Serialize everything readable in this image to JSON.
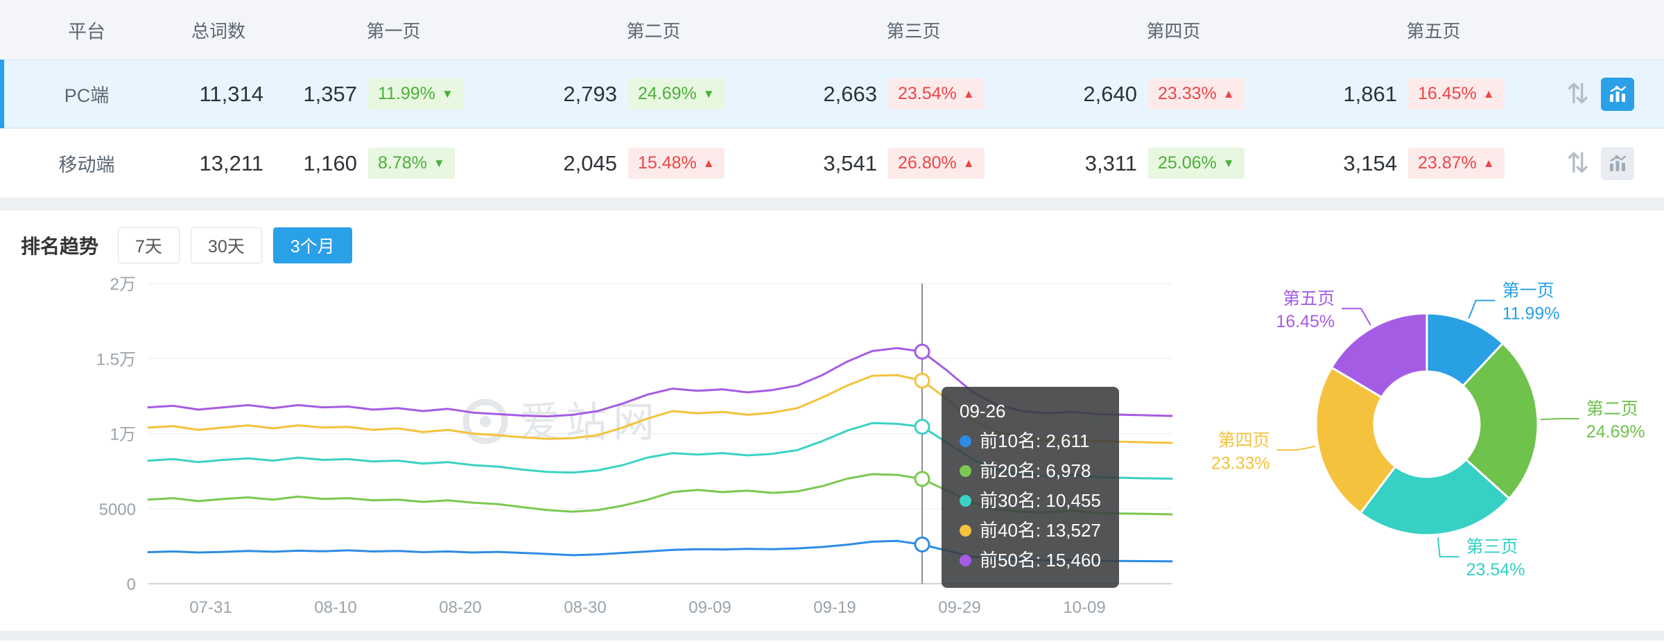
{
  "table": {
    "headers": [
      "平台",
      "总词数",
      "第一页",
      "第二页",
      "第三页",
      "第四页",
      "第五页"
    ],
    "rows": [
      {
        "platform": "PC端",
        "total": "11,314",
        "selected": true,
        "pages": [
          {
            "count": "1,357",
            "pct": "11.99%",
            "dir": "down"
          },
          {
            "count": "2,793",
            "pct": "24.69%",
            "dir": "down"
          },
          {
            "count": "2,663",
            "pct": "23.54%",
            "dir": "up"
          },
          {
            "count": "2,640",
            "pct": "23.33%",
            "dir": "up"
          },
          {
            "count": "1,861",
            "pct": "16.45%",
            "dir": "up"
          }
        ]
      },
      {
        "platform": "移动端",
        "total": "13,211",
        "selected": false,
        "pages": [
          {
            "count": "1,160",
            "pct": "8.78%",
            "dir": "down"
          },
          {
            "count": "2,045",
            "pct": "15.48%",
            "dir": "up"
          },
          {
            "count": "3,541",
            "pct": "26.80%",
            "dir": "up"
          },
          {
            "count": "3,311",
            "pct": "25.06%",
            "dir": "down"
          },
          {
            "count": "3,154",
            "pct": "23.87%",
            "dir": "up"
          }
        ]
      }
    ]
  },
  "icons": {
    "compare": "⇅"
  },
  "trend": {
    "title": "排名趋势",
    "range_buttons": [
      {
        "label": "7天",
        "active": false
      },
      {
        "label": "30天",
        "active": false
      },
      {
        "label": "3个月",
        "active": true
      }
    ],
    "watermark": "爱站网"
  },
  "colors": {
    "accent_blue": "#2aa0e8",
    "up_red": "#ee4545",
    "down_green": "#4bb03a",
    "selected_row_bg": "#e8f5fe"
  },
  "chart_data": [
    {
      "type": "line",
      "title": "排名趋势",
      "ylim": [
        0,
        20000
      ],
      "grid": true,
      "y_axis": {
        "labels": [
          "0",
          "5000",
          "1万",
          "1.5万",
          "2万"
        ],
        "values": [
          0,
          5000,
          10000,
          15000,
          20000
        ]
      },
      "x_ticks": [
        "07-31",
        "08-10",
        "08-20",
        "08-30",
        "09-09",
        "09-19",
        "09-29",
        "10-09"
      ],
      "x_tick_indices": [
        2.5,
        7.5,
        12.5,
        17.5,
        22.5,
        27.5,
        32.5,
        37.5
      ],
      "x": [
        "07-26",
        "07-28",
        "07-30",
        "08-01",
        "08-03",
        "08-05",
        "08-07",
        "08-09",
        "08-11",
        "08-13",
        "08-15",
        "08-17",
        "08-19",
        "08-21",
        "08-23",
        "08-25",
        "08-27",
        "08-29",
        "08-31",
        "09-02",
        "09-04",
        "09-06",
        "09-08",
        "09-10",
        "09-12",
        "09-14",
        "09-16",
        "09-18",
        "09-20",
        "09-22",
        "09-24",
        "09-26",
        "09-28",
        "09-30",
        "10-02",
        "10-04",
        "10-06",
        "10-08",
        "10-10",
        "10-12",
        "10-14",
        "10-16"
      ],
      "series": [
        {
          "name": "前10名",
          "color": "#2e8be4",
          "values": [
            2100,
            2150,
            2080,
            2120,
            2180,
            2130,
            2200,
            2160,
            2220,
            2150,
            2180,
            2100,
            2150,
            2080,
            2120,
            2050,
            1980,
            1900,
            1950,
            2050,
            2150,
            2250,
            2300,
            2280,
            2320,
            2300,
            2350,
            2450,
            2600,
            2800,
            2850,
            2611,
            2200,
            1800,
            1650,
            1600,
            1550,
            1580,
            1520,
            1510,
            1500,
            1490
          ]
        },
        {
          "name": "前20名",
          "color": "#7cc850",
          "values": [
            5600,
            5700,
            5500,
            5650,
            5750,
            5600,
            5800,
            5650,
            5700,
            5550,
            5600,
            5450,
            5550,
            5400,
            5300,
            5100,
            4900,
            4800,
            4900,
            5200,
            5600,
            6100,
            6250,
            6100,
            6200,
            6050,
            6150,
            6500,
            7000,
            7300,
            7250,
            6978,
            6200,
            5400,
            4950,
            4800,
            4750,
            4850,
            4700,
            4680,
            4650,
            4620
          ]
        },
        {
          "name": "前30名",
          "color": "#3bd2c5",
          "values": [
            8200,
            8300,
            8100,
            8250,
            8350,
            8200,
            8400,
            8250,
            8300,
            8150,
            8200,
            8000,
            8100,
            7900,
            7800,
            7600,
            7450,
            7400,
            7550,
            7900,
            8400,
            8700,
            8600,
            8700,
            8550,
            8650,
            8900,
            9500,
            10200,
            10700,
            10650,
            10455,
            9400,
            8300,
            7600,
            7300,
            7150,
            7250,
            7100,
            7060,
            7020,
            7000
          ]
        },
        {
          "name": "前40名",
          "color": "#f4c23c",
          "values": [
            10400,
            10500,
            10250,
            10400,
            10550,
            10350,
            10550,
            10400,
            10450,
            10250,
            10350,
            10100,
            10250,
            10000,
            9900,
            9750,
            9650,
            9700,
            9900,
            10400,
            11000,
            11500,
            11350,
            11450,
            11250,
            11400,
            11700,
            12400,
            13200,
            13850,
            13900,
            13527,
            12300,
            10900,
            10100,
            9750,
            9550,
            9650,
            9500,
            9460,
            9420,
            9380
          ]
        },
        {
          "name": "前50名",
          "color": "#a55ce4",
          "values": [
            11750,
            11850,
            11600,
            11750,
            11900,
            11700,
            11900,
            11750,
            11800,
            11600,
            11700,
            11500,
            11650,
            11400,
            11300,
            11200,
            11150,
            11250,
            11500,
            12000,
            12600,
            13000,
            12850,
            12950,
            12750,
            12900,
            13200,
            13900,
            14800,
            15500,
            15700,
            15460,
            14200,
            12800,
            11900,
            11500,
            11350,
            11450,
            11300,
            11260,
            11220,
            11180
          ]
        }
      ],
      "crosshair": {
        "date": "09-26",
        "tooltip": {
          "title": "09-26",
          "rows": [
            "前10名: 2,611",
            "前20名: 6,978",
            "前30名: 10,455",
            "前40名: 13,527",
            "前50名: 15,460"
          ]
        }
      }
    },
    {
      "type": "pie",
      "donut": true,
      "slices": [
        {
          "label": "第一页",
          "pct": 11.99,
          "pct_label": "11.99%",
          "color": "#2aa0e4"
        },
        {
          "label": "第二页",
          "pct": 24.69,
          "pct_label": "24.69%",
          "color": "#6fc24c"
        },
        {
          "label": "第三页",
          "pct": 23.54,
          "pct_label": "23.54%",
          "color": "#36d0c4"
        },
        {
          "label": "第四页",
          "pct": 23.33,
          "pct_label": "23.33%",
          "color": "#f4c23c"
        },
        {
          "label": "第五页",
          "pct": 16.45,
          "pct_label": "16.45%",
          "color": "#a55ce4"
        }
      ]
    }
  ]
}
